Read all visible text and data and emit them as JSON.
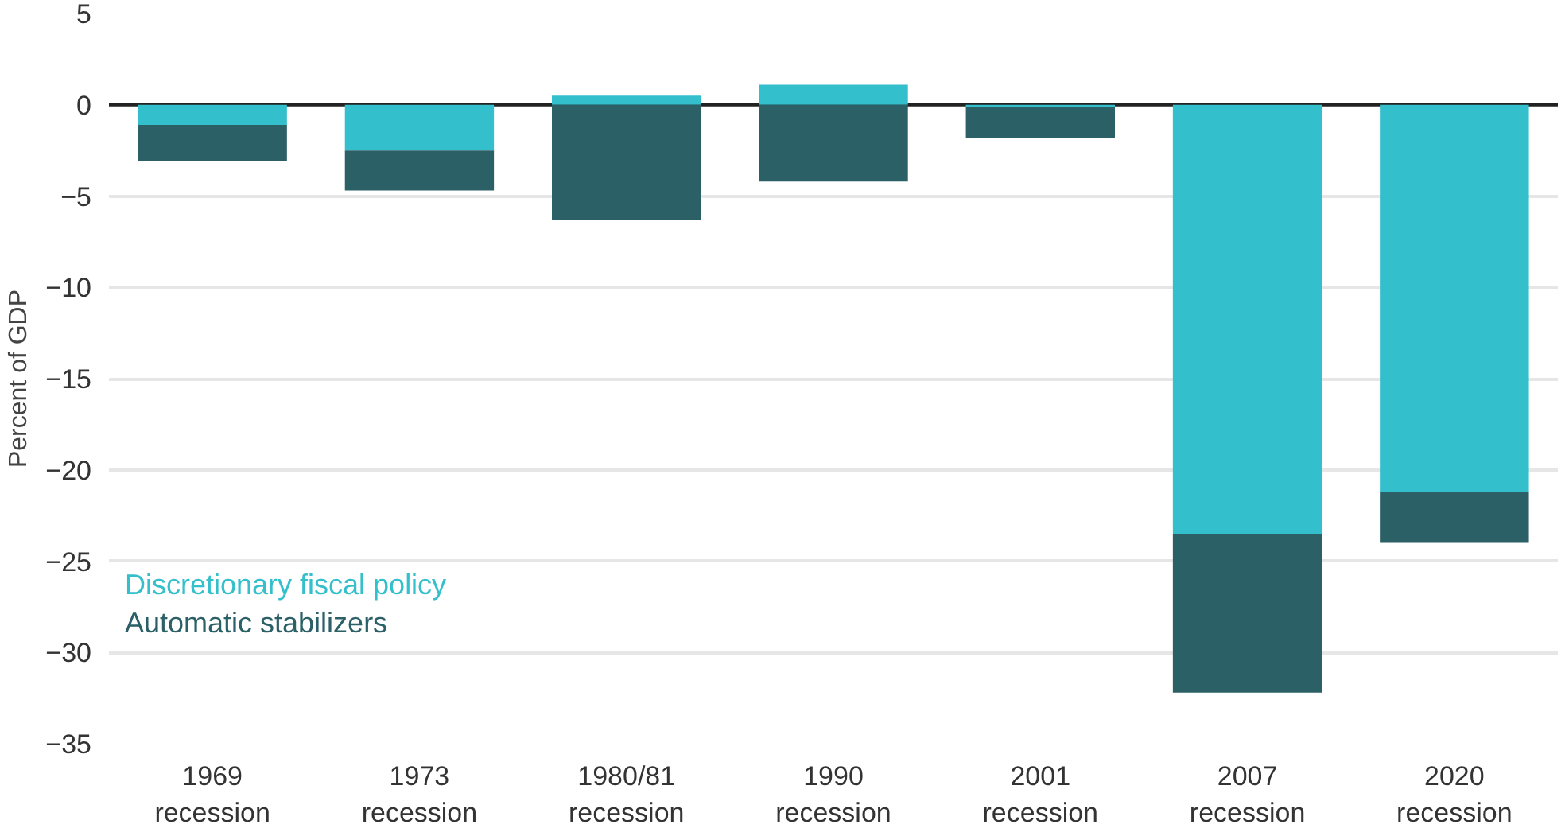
{
  "chart_data": {
    "type": "bar",
    "stacked": true,
    "ylabel": "Percent of GDP",
    "categories": [
      "1969 recession",
      "1973 recession",
      "1980/81 recession",
      "1990 recession",
      "2001 recession",
      "2007 recession",
      "2020 recession"
    ],
    "series": [
      {
        "name": "Discretionary fiscal policy",
        "color": "#33bfcc",
        "values": [
          -1.1,
          -2.5,
          0.5,
          1.1,
          -0.1,
          -23.5,
          -21.2
        ]
      },
      {
        "name": "Automatic stabilizers",
        "color": "#2b6066",
        "values": [
          -2.0,
          -2.2,
          -6.3,
          -4.2,
          -1.7,
          -8.7,
          -2.8
        ]
      }
    ],
    "ylim": [
      -35,
      5
    ],
    "yticks": [
      5,
      0,
      -5,
      -10,
      -15,
      -20,
      -25,
      -30,
      -35
    ],
    "grid": "y",
    "legend": "bottom left",
    "ref_lines": [
      {
        "axis": "y",
        "value": 0,
        "color": "#222222"
      }
    ]
  }
}
